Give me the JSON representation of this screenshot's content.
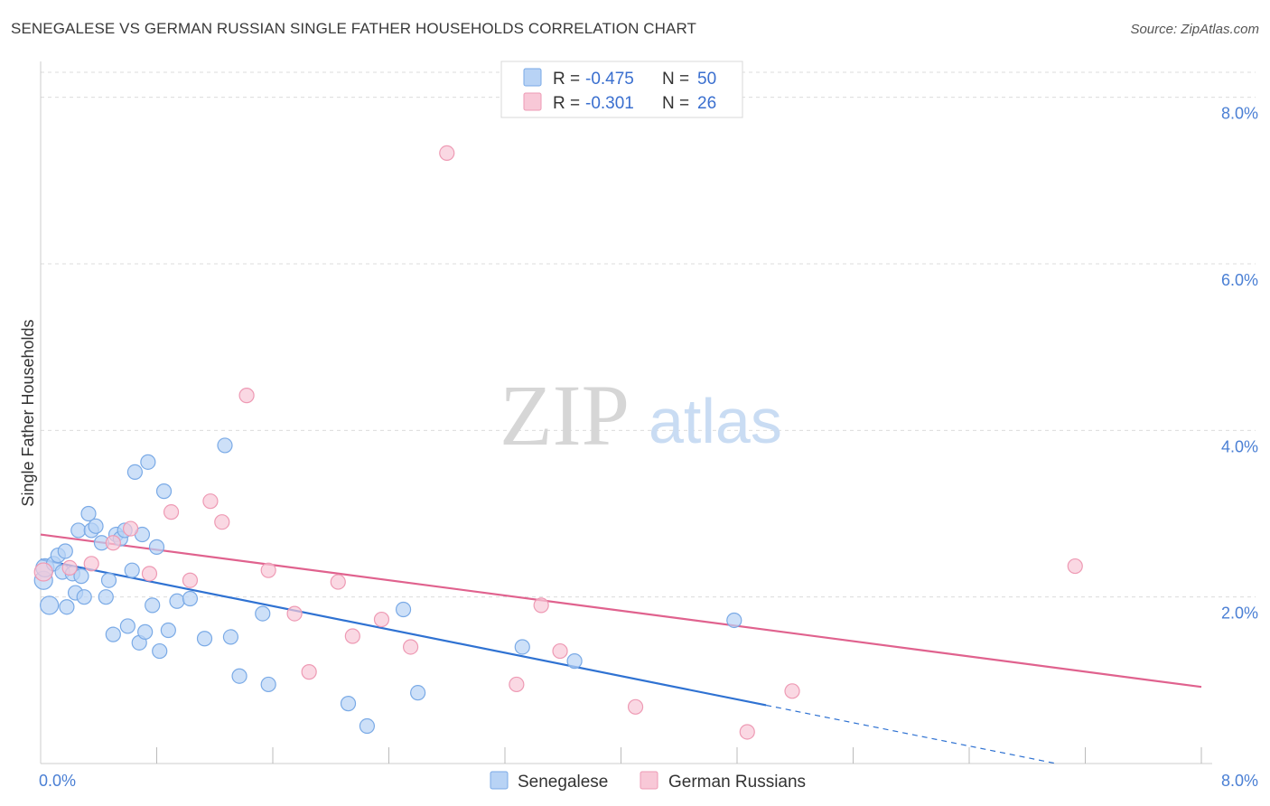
{
  "title": "SENEGALESE VS GERMAN RUSSIAN SINGLE FATHER HOUSEHOLDS CORRELATION CHART",
  "source": "Source: ZipAtlas.com",
  "watermark": {
    "zip": "ZIP",
    "atlas": "atlas"
  },
  "colors": {
    "blue_fill": "#b8d3f5",
    "blue_stroke": "#7aaae6",
    "blue_line": "#2f72d2",
    "pink_fill": "#f8c8d7",
    "pink_stroke": "#ee9ab4",
    "pink_line": "#e0628e",
    "grid": "#dcdcdc",
    "tick_text": "#4a7fd4"
  },
  "chart_data": {
    "type": "scatter",
    "title": "SENEGALESE VS GERMAN RUSSIAN SINGLE FATHER HOUSEHOLDS CORRELATION CHART",
    "xlabel": "",
    "ylabel": "Single Father Households",
    "xlim": [
      0,
      8
    ],
    "ylim": [
      0,
      8.3
    ],
    "x_tick_labels": [
      {
        "value": 0,
        "label": "0.0%"
      },
      {
        "value": 8,
        "label": "8.0%"
      }
    ],
    "y_tick_labels": [
      {
        "value": 2,
        "label": "2.0%"
      },
      {
        "value": 4,
        "label": "4.0%"
      },
      {
        "value": 6,
        "label": "6.0%"
      },
      {
        "value": 8,
        "label": "8.0%"
      }
    ],
    "grid": true,
    "legend_position": "top-center",
    "legend": [
      {
        "series": "Senegalese",
        "r_label": "R =",
        "r_value": "-0.475",
        "n_label": "N =",
        "n_value": "50"
      },
      {
        "series": "German Russians",
        "r_label": "R =",
        "r_value": "-0.301",
        "n_label": "N =",
        "n_value": "26"
      }
    ],
    "series": [
      {
        "name": "Senegalese",
        "color": "#b8d3f5",
        "points": [
          [
            0.02,
            2.2
          ],
          [
            0.03,
            2.35
          ],
          [
            0.06,
            1.9
          ],
          [
            0.09,
            2.4
          ],
          [
            0.12,
            2.5
          ],
          [
            0.15,
            2.3
          ],
          [
            0.17,
            2.55
          ],
          [
            0.18,
            1.88
          ],
          [
            0.22,
            2.28
          ],
          [
            0.24,
            2.05
          ],
          [
            0.26,
            2.8
          ],
          [
            0.28,
            2.25
          ],
          [
            0.3,
            2.0
          ],
          [
            0.33,
            3.0
          ],
          [
            0.35,
            2.8
          ],
          [
            0.38,
            2.85
          ],
          [
            0.42,
            2.65
          ],
          [
            0.45,
            2.0
          ],
          [
            0.47,
            2.2
          ],
          [
            0.5,
            1.55
          ],
          [
            0.52,
            2.75
          ],
          [
            0.55,
            2.7
          ],
          [
            0.58,
            2.8
          ],
          [
            0.6,
            1.65
          ],
          [
            0.63,
            2.32
          ],
          [
            0.65,
            3.5
          ],
          [
            0.68,
            1.45
          ],
          [
            0.7,
            2.75
          ],
          [
            0.72,
            1.58
          ],
          [
            0.74,
            3.62
          ],
          [
            0.77,
            1.9
          ],
          [
            0.8,
            2.6
          ],
          [
            0.82,
            1.35
          ],
          [
            0.85,
            3.27
          ],
          [
            0.94,
            1.95
          ],
          [
            1.03,
            1.98
          ],
          [
            1.13,
            1.5
          ],
          [
            1.27,
            3.82
          ],
          [
            1.31,
            1.52
          ],
          [
            1.37,
            1.05
          ],
          [
            1.53,
            1.8
          ],
          [
            1.57,
            0.95
          ],
          [
            2.12,
            0.72
          ],
          [
            2.25,
            0.45
          ],
          [
            2.5,
            1.85
          ],
          [
            2.6,
            0.85
          ],
          [
            3.32,
            1.4
          ],
          [
            3.68,
            1.23
          ],
          [
            4.78,
            1.72
          ],
          [
            0.88,
            1.6
          ]
        ],
        "trend": {
          "x0": 0.0,
          "y0": 2.45,
          "x1": 5.0,
          "y1": 0.7,
          "dash_x1": 7.0,
          "dash_y1": 0.0
        }
      },
      {
        "name": "German Russians",
        "color": "#f8c8d7",
        "points": [
          [
            0.02,
            2.3
          ],
          [
            0.2,
            2.35
          ],
          [
            0.35,
            2.4
          ],
          [
            0.5,
            2.65
          ],
          [
            0.62,
            2.82
          ],
          [
            0.75,
            2.28
          ],
          [
            0.9,
            3.02
          ],
          [
            1.03,
            2.2
          ],
          [
            1.17,
            3.15
          ],
          [
            1.25,
            2.9
          ],
          [
            1.42,
            4.42
          ],
          [
            1.57,
            2.32
          ],
          [
            1.75,
            1.8
          ],
          [
            1.85,
            1.1
          ],
          [
            2.05,
            2.18
          ],
          [
            2.15,
            1.53
          ],
          [
            2.35,
            1.73
          ],
          [
            2.55,
            1.4
          ],
          [
            2.8,
            7.33
          ],
          [
            3.28,
            0.95
          ],
          [
            3.45,
            1.9
          ],
          [
            3.58,
            1.35
          ],
          [
            4.1,
            0.68
          ],
          [
            4.87,
            0.38
          ],
          [
            5.18,
            0.87
          ],
          [
            7.13,
            2.37
          ]
        ],
        "trend": {
          "x0": 0.0,
          "y0": 2.75,
          "x1": 8.0,
          "y1": 0.92
        }
      }
    ]
  }
}
